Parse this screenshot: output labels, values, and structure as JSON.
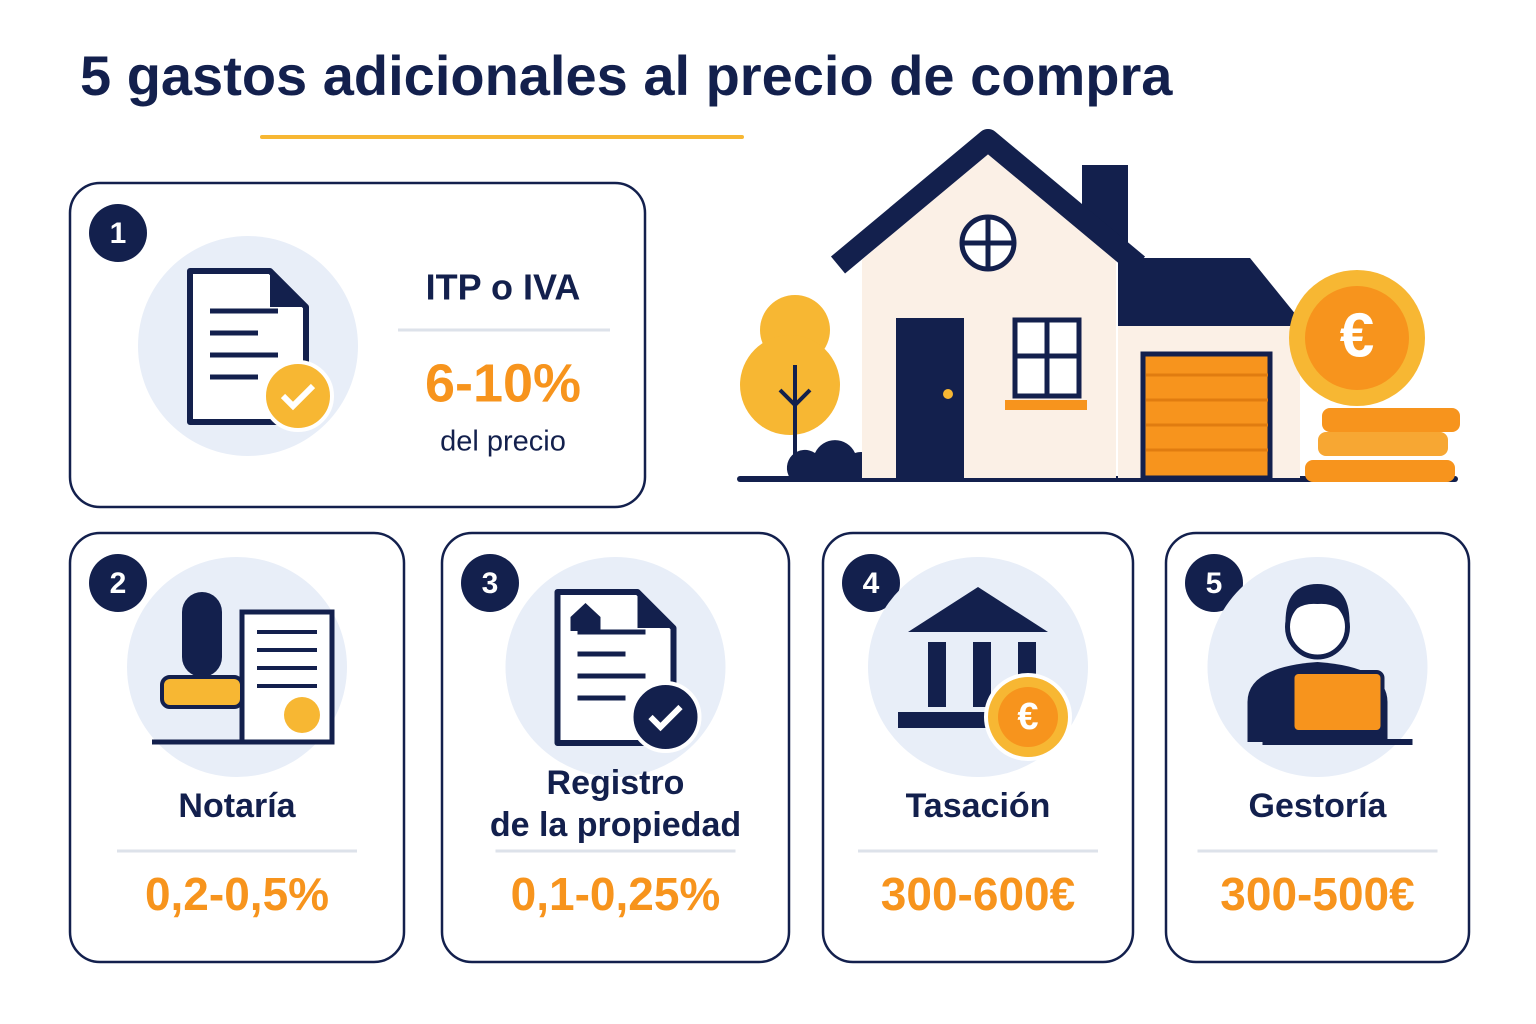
{
  "title": "5 gastos adicionales al precio de compra",
  "cards": [
    {
      "number": 1,
      "label_lines": [
        "ITP o IVA"
      ],
      "value": "6-10%",
      "note": "del precio"
    },
    {
      "number": 2,
      "label_lines": [
        "Notaría"
      ],
      "value": "0,2-0,5%"
    },
    {
      "number": 3,
      "label_lines": [
        "Registro",
        "de la propiedad"
      ],
      "value": "0,1-0,25%"
    },
    {
      "number": 4,
      "label_lines": [
        "Tasación"
      ],
      "value": "300-600€"
    },
    {
      "number": 5,
      "label_lines": [
        "Gestoría"
      ],
      "value": "300-500€"
    }
  ]
}
